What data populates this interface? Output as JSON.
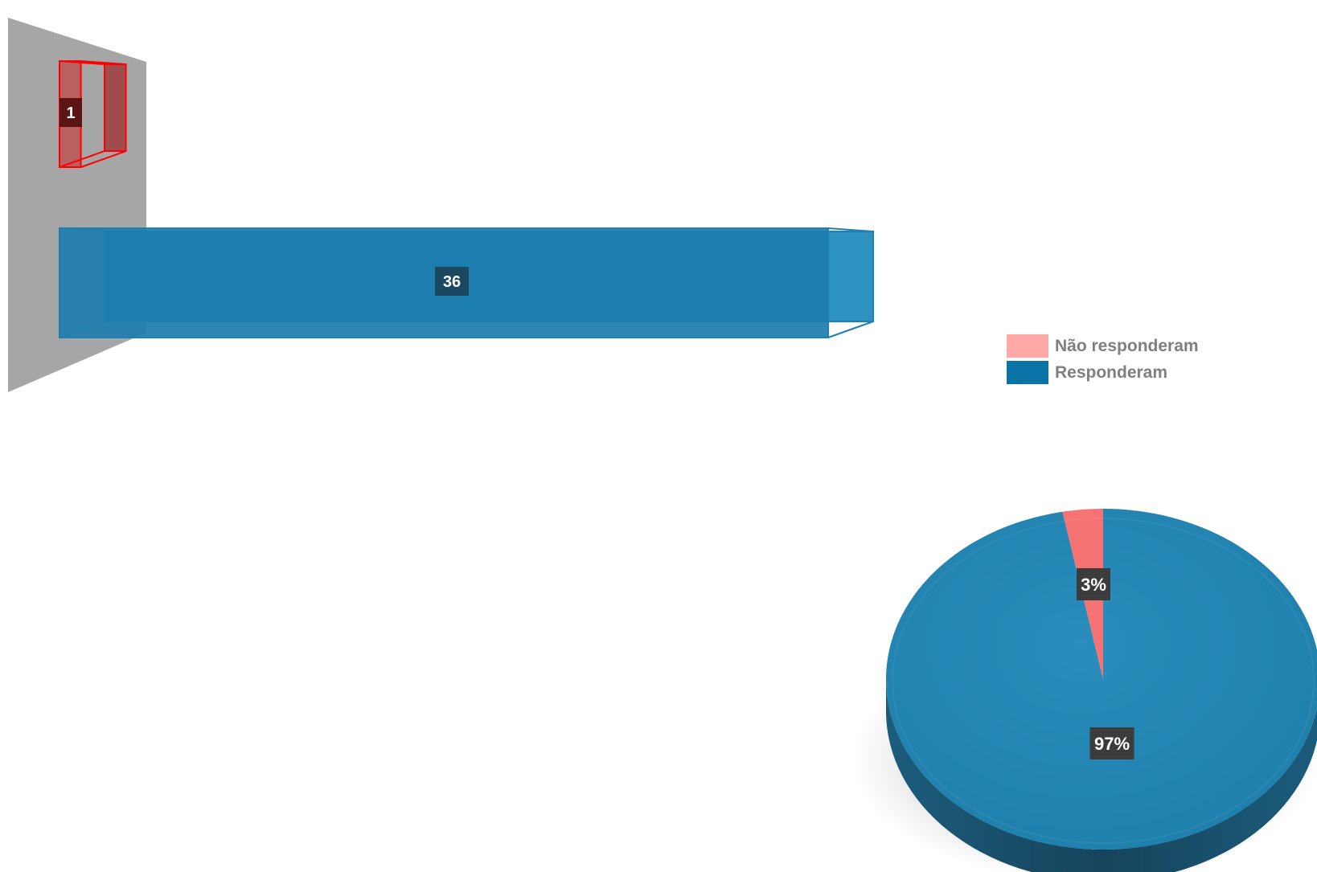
{
  "chart_data": [
    {
      "type": "bar",
      "orientation": "horizontal",
      "style": "3d",
      "categories": [
        "",
        ""
      ],
      "series": [
        {
          "values": [
            1,
            36
          ],
          "colors": [
            "#ff0000",
            "#1f7fb0"
          ]
        }
      ],
      "data_labels": [
        "1",
        "36"
      ],
      "xlim": [
        0,
        36
      ],
      "grid": false,
      "legend": "none"
    },
    {
      "type": "pie",
      "style": "3d",
      "slices": [
        {
          "name": "Não responderam",
          "value": 3,
          "label": "3%",
          "color": "#f57373"
        },
        {
          "name": "Responderam",
          "value": 97,
          "label": "97%",
          "color": "#2186b4"
        }
      ],
      "legend": "right",
      "legend_items": [
        {
          "label": "Não responderam",
          "color": "#ffa8a8"
        },
        {
          "label": "Responderam",
          "color": "#0b74a6"
        }
      ]
    }
  ]
}
